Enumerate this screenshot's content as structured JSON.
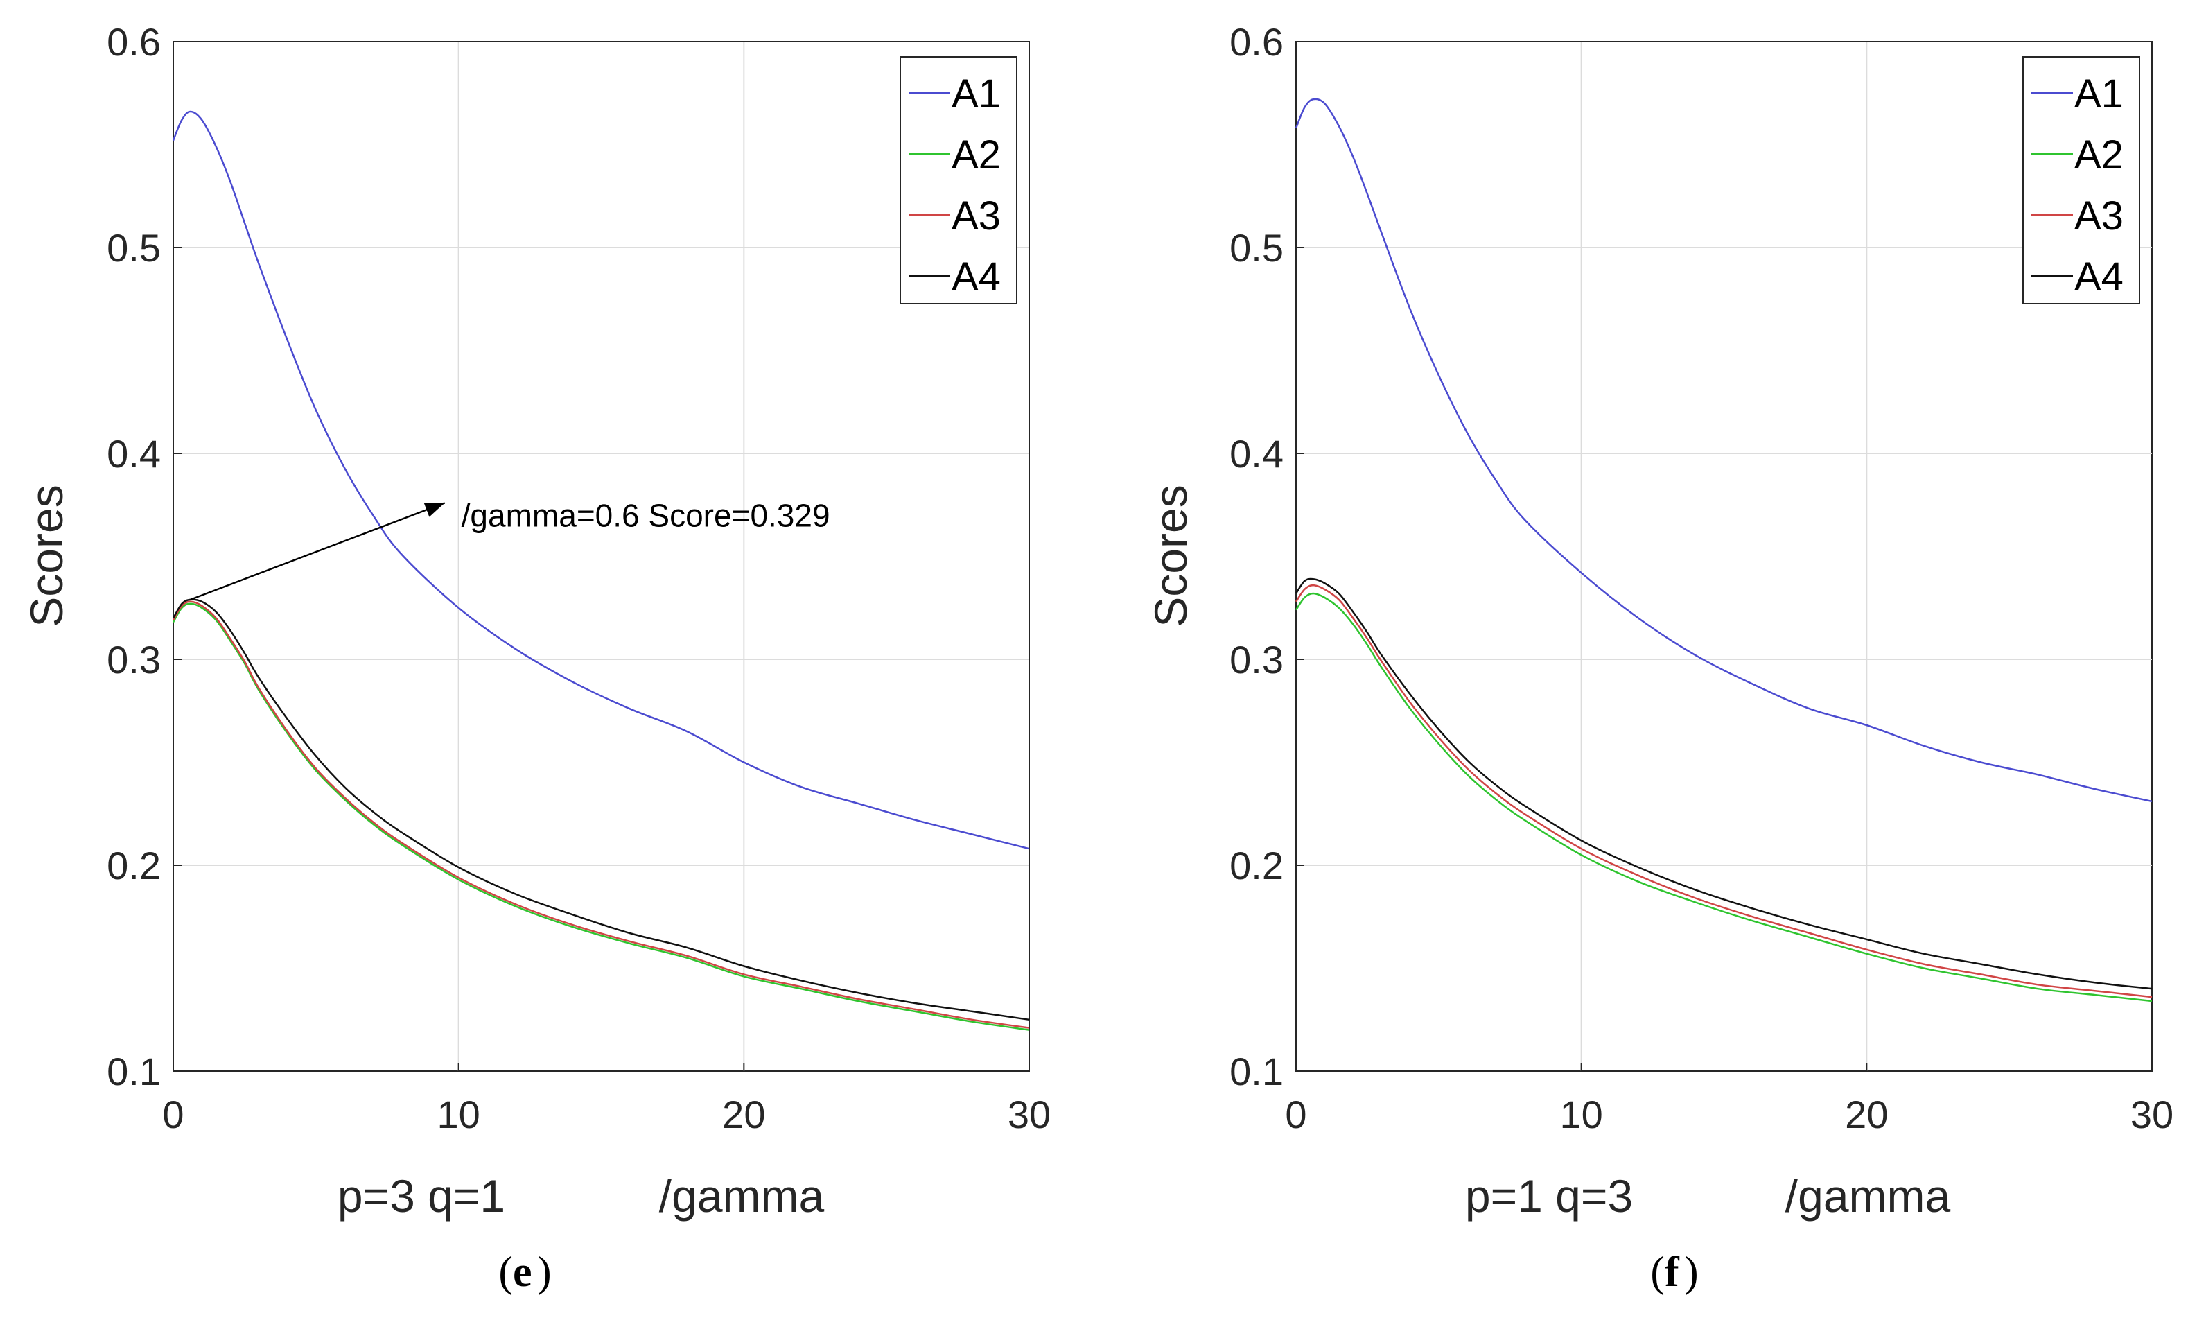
{
  "colors": {
    "A1": "#4b4bd0",
    "A2": "#2fc42f",
    "A3": "#d04545",
    "A4": "#111111",
    "grid": "#dcdcdc",
    "axis": "#262626"
  },
  "chart_data": [
    {
      "type": "line",
      "panel_label": "e",
      "xlabel_params": "p=3 q=1",
      "xlabel": "/gamma",
      "ylabel": "Scores",
      "xlim": [
        0,
        30
      ],
      "ylim": [
        0.1,
        0.6
      ],
      "xticks": [
        0,
        10,
        20,
        30
      ],
      "yticks": [
        0.1,
        0.2,
        0.3,
        0.4,
        0.5,
        0.6
      ],
      "grid": true,
      "legend": "top-right",
      "x": [
        0,
        0.3,
        0.6,
        1,
        1.5,
        2,
        2.5,
        3,
        4,
        5,
        6,
        7,
        8,
        10,
        12,
        14,
        16,
        18,
        20,
        22,
        24,
        26,
        28,
        30
      ],
      "series": [
        {
          "name": "A1",
          "values": [
            0.552,
            0.562,
            0.566,
            0.562,
            0.549,
            0.532,
            0.512,
            0.492,
            0.455,
            0.421,
            0.393,
            0.37,
            0.351,
            0.325,
            0.305,
            0.289,
            0.276,
            0.265,
            0.25,
            0.238,
            0.23,
            0.222,
            0.215,
            0.208
          ]
        },
        {
          "name": "A2",
          "values": [
            0.318,
            0.325,
            0.327,
            0.325,
            0.319,
            0.309,
            0.298,
            0.285,
            0.264,
            0.246,
            0.232,
            0.22,
            0.21,
            0.193,
            0.18,
            0.17,
            0.162,
            0.155,
            0.146,
            0.14,
            0.134,
            0.129,
            0.124,
            0.12
          ]
        },
        {
          "name": "A3",
          "values": [
            0.319,
            0.326,
            0.328,
            0.326,
            0.32,
            0.31,
            0.299,
            0.286,
            0.265,
            0.247,
            0.233,
            0.221,
            0.211,
            0.194,
            0.181,
            0.171,
            0.163,
            0.156,
            0.147,
            0.141,
            0.135,
            0.13,
            0.125,
            0.121
          ]
        },
        {
          "name": "A4",
          "values": [
            0.32,
            0.327,
            0.329,
            0.328,
            0.323,
            0.314,
            0.303,
            0.291,
            0.271,
            0.253,
            0.238,
            0.226,
            0.216,
            0.199,
            0.186,
            0.176,
            0.167,
            0.16,
            0.151,
            0.144,
            0.138,
            0.133,
            0.129,
            0.125
          ]
        }
      ],
      "annotation": {
        "text": "/gamma=0.6 Score=0.329",
        "point": [
          0.6,
          0.329
        ],
        "text_at": [
          10,
          0.38
        ]
      }
    },
    {
      "type": "line",
      "panel_label": "f",
      "xlabel_params": "p=1 q=3",
      "xlabel": "/gamma",
      "ylabel": "Scores",
      "xlim": [
        0,
        30
      ],
      "ylim": [
        0.1,
        0.6
      ],
      "xticks": [
        0,
        10,
        20,
        30
      ],
      "yticks": [
        0.1,
        0.2,
        0.3,
        0.4,
        0.5,
        0.6
      ],
      "grid": true,
      "legend": "top-right",
      "x": [
        0,
        0.3,
        0.6,
        1,
        1.5,
        2,
        2.5,
        3,
        4,
        5,
        6,
        7,
        8,
        10,
        12,
        14,
        16,
        18,
        20,
        22,
        24,
        26,
        28,
        30
      ],
      "series": [
        {
          "name": "A1",
          "values": [
            0.558,
            0.568,
            0.572,
            0.57,
            0.559,
            0.544,
            0.526,
            0.507,
            0.47,
            0.438,
            0.41,
            0.387,
            0.368,
            0.342,
            0.32,
            0.302,
            0.288,
            0.276,
            0.268,
            0.258,
            0.25,
            0.244,
            0.237,
            0.231
          ]
        },
        {
          "name": "A2",
          "values": [
            0.324,
            0.33,
            0.332,
            0.33,
            0.325,
            0.317,
            0.307,
            0.296,
            0.276,
            0.259,
            0.244,
            0.232,
            0.222,
            0.205,
            0.192,
            0.182,
            0.173,
            0.165,
            0.157,
            0.15,
            0.145,
            0.14,
            0.137,
            0.134
          ]
        },
        {
          "name": "A3",
          "values": [
            0.328,
            0.334,
            0.336,
            0.334,
            0.329,
            0.32,
            0.31,
            0.299,
            0.279,
            0.262,
            0.247,
            0.235,
            0.225,
            0.208,
            0.195,
            0.184,
            0.175,
            0.167,
            0.159,
            0.152,
            0.147,
            0.142,
            0.139,
            0.136
          ]
        },
        {
          "name": "A4",
          "values": [
            0.332,
            0.338,
            0.339,
            0.337,
            0.332,
            0.323,
            0.313,
            0.302,
            0.283,
            0.266,
            0.251,
            0.239,
            0.229,
            0.212,
            0.199,
            0.188,
            0.179,
            0.171,
            0.164,
            0.157,
            0.152,
            0.147,
            0.143,
            0.14
          ]
        }
      ],
      "annotation": null
    }
  ]
}
